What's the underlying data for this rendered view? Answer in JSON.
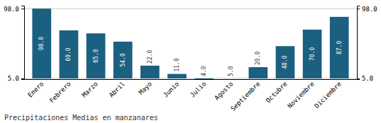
{
  "chart_data": {
    "type": "bar",
    "title": "Precipitaciones Medias en manzanares",
    "categories": [
      "Enero",
      "Febrero",
      "Marzo",
      "Abril",
      "Mayo",
      "Junio",
      "Julio",
      "Agosto",
      "Septiembre",
      "Octubre",
      "Noviembre",
      "Diciembre"
    ],
    "values": [
      98.0,
      69.0,
      65.0,
      54.0,
      22.0,
      11.0,
      4.0,
      5.0,
      20.0,
      48.0,
      70.0,
      87.0
    ],
    "value_labels": [
      "98.0",
      "69.0",
      "65.0",
      "54.0",
      "22.0",
      "11.0",
      "4.0",
      "5.0",
      "20.0",
      "48.0",
      "70.0",
      "87.0"
    ],
    "color": "#1b6080",
    "ylim": [
      4.0,
      101.92
    ],
    "yticks": [
      {
        "value": 5.0,
        "label": "5.0"
      },
      {
        "value": 98.0,
        "label": "98.0"
      }
    ],
    "y2lim": [
      4.0,
      101.92
    ],
    "y2ticks": [
      {
        "value": 5.0,
        "label": "5.0"
      },
      {
        "value": 98.0,
        "label": "98.0"
      }
    ],
    "grid": true,
    "data_labels": true
  }
}
